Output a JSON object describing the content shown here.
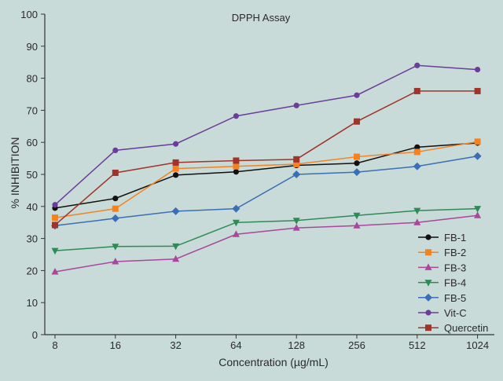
{
  "chart_data": {
    "type": "line",
    "title": "DPPH Assay",
    "xlabel": "Concentration (µg/mL)",
    "ylabel": "% INHIBITION",
    "x": [
      8,
      16,
      32,
      64,
      128,
      256,
      512,
      1024
    ],
    "x_scale": "log2",
    "categories": [
      "8",
      "16",
      "32",
      "64",
      "128",
      "256",
      "512",
      "1024"
    ],
    "ylim": [
      0,
      100
    ],
    "yticks": [
      0,
      10,
      20,
      30,
      40,
      50,
      60,
      70,
      80,
      90,
      100
    ],
    "grid": false,
    "legend_position": "bottom-right",
    "series": [
      {
        "name": "FB-1",
        "color": "#111111",
        "marker": "circle",
        "values": [
          39.5,
          42.5,
          49.8,
          50.8,
          52.8,
          53.5,
          58.5,
          59.8
        ]
      },
      {
        "name": "FB-2",
        "color": "#f58220",
        "marker": "square",
        "values": [
          36.5,
          39.3,
          51.8,
          52.5,
          53.2,
          55.5,
          57.0,
          60.2
        ]
      },
      {
        "name": "FB-3",
        "color": "#a8479b",
        "marker": "triangle-up",
        "values": [
          19.6,
          22.8,
          23.6,
          31.3,
          33.3,
          34.0,
          35.0,
          37.2
        ]
      },
      {
        "name": "FB-4",
        "color": "#2e8b57",
        "marker": "triangle-down",
        "values": [
          26.2,
          27.5,
          27.6,
          35.0,
          35.6,
          37.2,
          38.7,
          39.3
        ]
      },
      {
        "name": "FB-5",
        "color": "#3a6fb5",
        "marker": "diamond",
        "values": [
          34.0,
          36.3,
          38.5,
          39.3,
          50.0,
          50.7,
          52.5,
          55.7
        ]
      },
      {
        "name": "Vit-C",
        "color": "#6a3d9a",
        "marker": "circle",
        "values": [
          40.5,
          57.5,
          59.5,
          68.2,
          71.5,
          74.7,
          84.0,
          82.7
        ]
      },
      {
        "name": "Quercetin",
        "color": "#a0332a",
        "marker": "square",
        "values": [
          34.2,
          50.5,
          53.7,
          54.3,
          54.7,
          66.5,
          76.0,
          76.0
        ]
      }
    ]
  }
}
